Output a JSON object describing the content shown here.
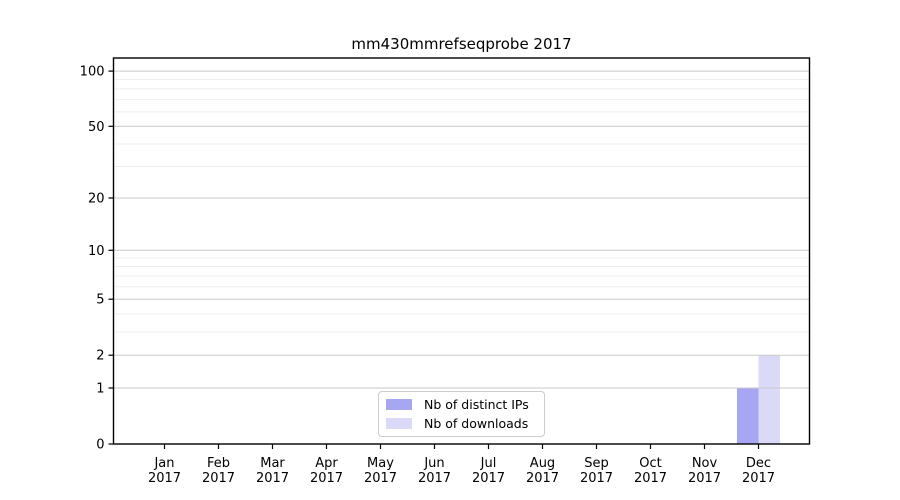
{
  "chart_data": {
    "type": "bar",
    "title": "mm430mmrefseqprobe 2017",
    "categories": [
      "Jan",
      "Feb",
      "Mar",
      "Apr",
      "May",
      "Jun",
      "Jul",
      "Aug",
      "Sep",
      "Oct",
      "Nov",
      "Dec"
    ],
    "category_year": "2017",
    "series": [
      {
        "name": "Nb of distinct IPs",
        "color": "#a6a6f2",
        "values": [
          0,
          0,
          0,
          0,
          0,
          0,
          0,
          0,
          0,
          0,
          0,
          1
        ]
      },
      {
        "name": "Nb of downloads",
        "color": "#dadaf8",
        "values": [
          0,
          0,
          0,
          0,
          0,
          0,
          0,
          0,
          0,
          0,
          0,
          2
        ]
      }
    ],
    "xlabel": "",
    "ylabel": "",
    "yscale": "log1p",
    "ylim": [
      0,
      117.8
    ],
    "yticks": [
      0,
      1,
      2,
      5,
      10,
      20,
      50,
      100
    ],
    "minor_yticks": [
      3,
      4,
      6,
      7,
      8,
      9,
      30,
      40,
      60,
      70,
      80,
      90
    ],
    "grid": {
      "major_color": "#c9c9c9",
      "minor_color": "#ededed",
      "on": true
    },
    "axis_color": "#000000",
    "text_color": "#000000",
    "legend": {
      "position": "lower center",
      "border_color": "#cccccc"
    }
  }
}
